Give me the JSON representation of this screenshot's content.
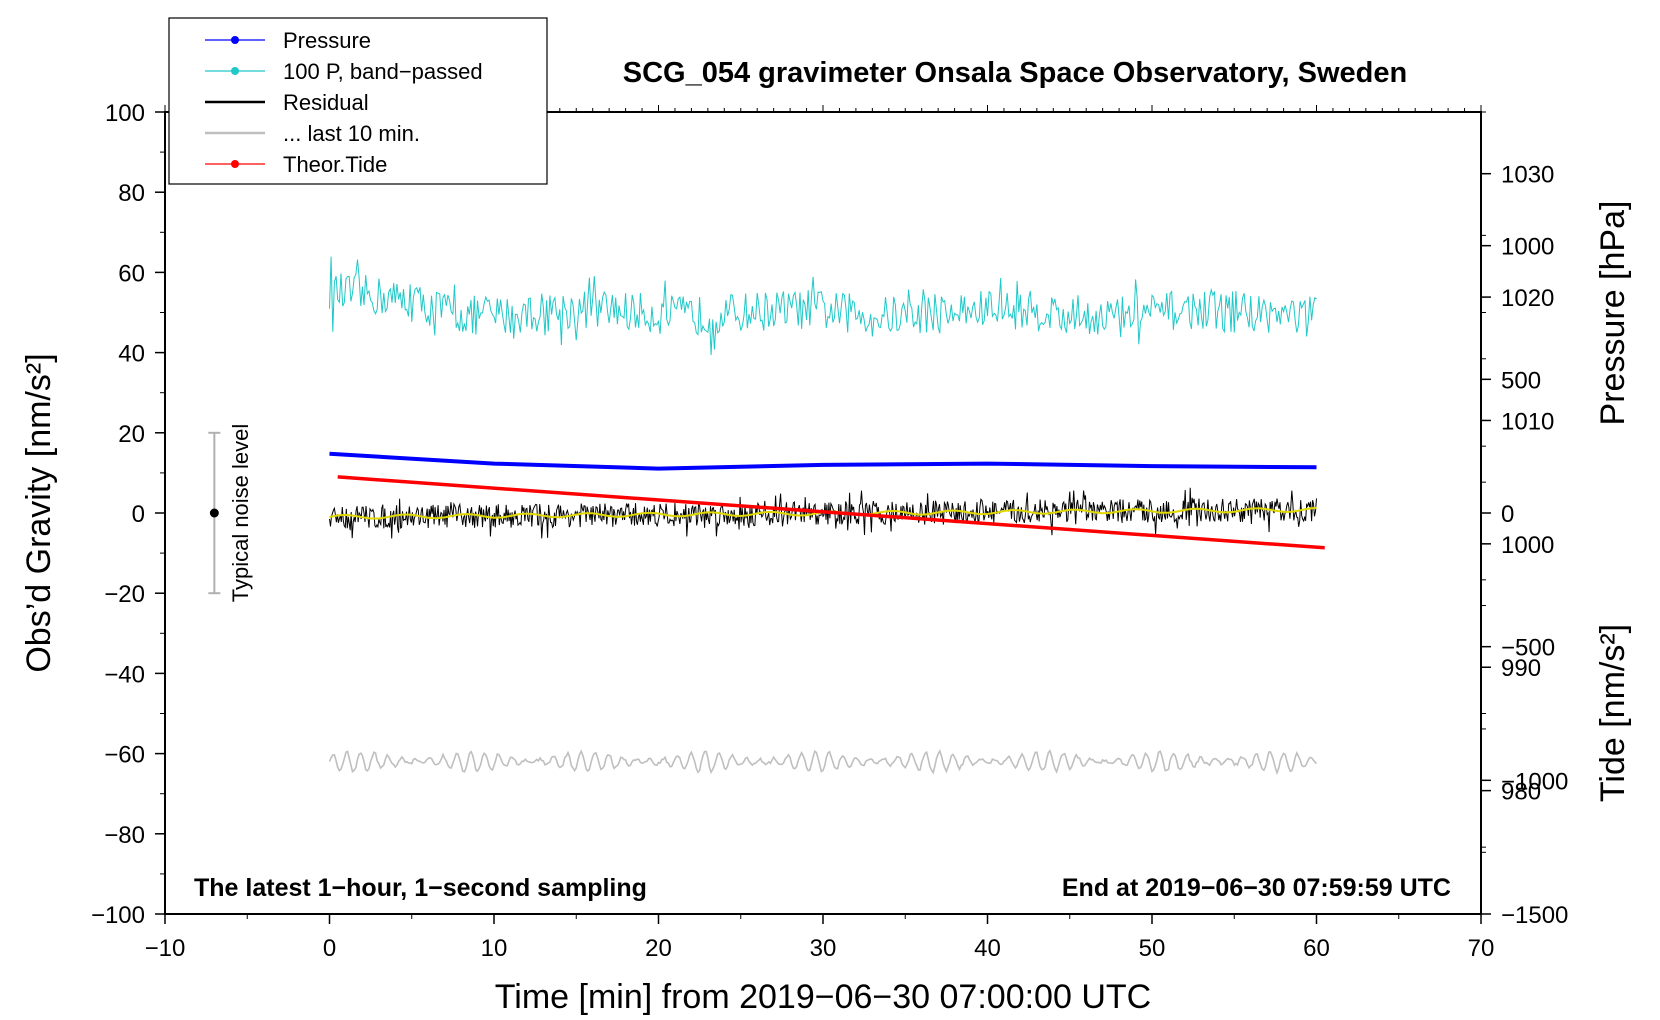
{
  "chart_data": {
    "type": "line",
    "title": "SCG_054 gravimeter Onsala Space Observatory, Sweden",
    "xlabel": "Time [min] from 2019−06−30 07:00:00 UTC",
    "ylabel_left": "Obs’d Gravity [nm/s²]",
    "ylabel_right_pressure": "Pressure [hPa]",
    "ylabel_right_tide": "Tide [nm/s²]",
    "xlim": [
      -10,
      70
    ],
    "ylim": [
      -100,
      100
    ],
    "pressure_lim": [
      970,
      1035
    ],
    "tide_lim": [
      -1500,
      1500
    ],
    "x_ticks": [
      "−10",
      "0",
      "10",
      "20",
      "30",
      "40",
      "50",
      "60",
      "70"
    ],
    "y_ticks": [
      "−100",
      "−80",
      "−60",
      "−40",
      "−20",
      "0",
      "20",
      "40",
      "60",
      "80",
      "100"
    ],
    "pressure_ticks": [
      "980",
      "990",
      "1000",
      "1010",
      "1020",
      "1030"
    ],
    "tide_ticks": [
      "−1500",
      "−1000",
      "−500",
      "0",
      "500",
      "1000"
    ],
    "left_annotation": "The latest 1−hour, 1−second sampling",
    "right_annotation": "End at 2019−06−30 07:59:59 UTC",
    "noise_bar": {
      "label": "Typical noise level",
      "x": -7,
      "center": 0,
      "low": -20,
      "high": 20
    },
    "legend": [
      {
        "label": "Pressure",
        "color": "#0000ff",
        "marker": true
      },
      {
        "label": "100 P, band−passed",
        "color": "#20c8c8",
        "marker": true
      },
      {
        "label": "Residual",
        "color": "#000000",
        "marker": false
      },
      {
        "label": "... last 10 min.",
        "color": "#bfbfbf",
        "marker": false
      },
      {
        "label": "Theor.Tide",
        "color": "#ff0000",
        "marker": true
      }
    ],
    "series": [
      {
        "name": "Pressure",
        "axis": "pressure",
        "color": "#0000ff",
        "x": [
          0,
          10,
          20,
          30,
          40,
          50,
          60
        ],
        "values": [
          1007.3,
          1006.5,
          1006.1,
          1006.4,
          1006.5,
          1006.3,
          1006.2
        ]
      },
      {
        "name": "100 P, band−passed",
        "axis": "gravity",
        "color": "#20c8c8",
        "x_range": [
          0,
          60
        ],
        "center": 51,
        "amplitude": 5
      },
      {
        "name": "Residual",
        "axis": "gravity",
        "color": "#000000",
        "x_range": [
          0,
          60
        ],
        "center": 0,
        "amplitude": 3
      },
      {
        "name": "... last 10 min.",
        "axis": "gravity",
        "color": "#bfbfbf",
        "x_range": [
          0,
          60
        ],
        "center": -62,
        "amplitude": 2.5
      },
      {
        "name": "Theor.Tide",
        "axis": "tide",
        "color": "#ff0000",
        "x": [
          0.5,
          60.5
        ],
        "values": [
          135,
          -130
        ]
      }
    ]
  }
}
